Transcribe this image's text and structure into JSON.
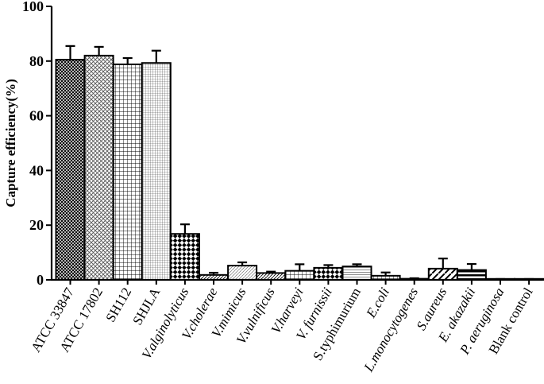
{
  "chart_data": {
    "type": "bar",
    "title": "",
    "xlabel": "",
    "ylabel": "Capture efficiency(%)",
    "ylim": [
      0,
      100
    ],
    "yticks": [
      0,
      20,
      40,
      60,
      80,
      100
    ],
    "grid": false,
    "legend": "none",
    "categories": [
      {
        "label": "ATCC 33847",
        "italic": false,
        "pattern": "dense-crosshatch"
      },
      {
        "label": "ATCC 17802",
        "italic": false,
        "pattern": "diagonal-crosshatch"
      },
      {
        "label": "SH112",
        "italic": false,
        "pattern": "grid"
      },
      {
        "label": "SHJLA",
        "italic": false,
        "pattern": "fine-grid"
      },
      {
        "label": "V.alginolyticus",
        "italic": true,
        "pattern": "checker"
      },
      {
        "label": "V.cholerae",
        "italic": true,
        "pattern": "diagonal"
      },
      {
        "label": "V.mimicus",
        "italic": true,
        "pattern": "light-diagonal"
      },
      {
        "label": "V.vulnificus",
        "italic": true,
        "pattern": "diagonal"
      },
      {
        "label": "V.harveyi",
        "italic": true,
        "pattern": "grid"
      },
      {
        "label": "V. furnissii",
        "italic": true,
        "pattern": "checker"
      },
      {
        "label": "S.typhimurium",
        "italic": false,
        "pattern": "horizontal"
      },
      {
        "label": "E.coli",
        "italic": true,
        "pattern": "grid"
      },
      {
        "label": "L.monocytogenes",
        "italic": true,
        "pattern": "solid"
      },
      {
        "label": "S.aureus",
        "italic": true,
        "pattern": "wide-diagonal"
      },
      {
        "label": "E. akazakii",
        "italic": true,
        "pattern": "horizontal-bold"
      },
      {
        "label": "P. aeruginosa",
        "italic": true,
        "pattern": "solid"
      },
      {
        "label": "Blank control",
        "italic": false,
        "pattern": "solid"
      }
    ],
    "values": [
      80.5,
      82.0,
      78.8,
      79.3,
      16.8,
      1.8,
      5.2,
      2.5,
      3.3,
      4.4,
      4.9,
      1.5,
      0.4,
      4.1,
      3.6,
      0.2,
      0.2
    ],
    "errors": [
      5.0,
      3.2,
      2.3,
      4.5,
      3.5,
      0.8,
      1.2,
      0.5,
      2.4,
      1.0,
      0.8,
      1.2,
      0.2,
      3.7,
      2.2,
      0.1,
      0.1
    ],
    "colors": {
      "bar_stroke": "#000000",
      "bar_fill": "#ffffff",
      "axis": "#000000"
    }
  }
}
